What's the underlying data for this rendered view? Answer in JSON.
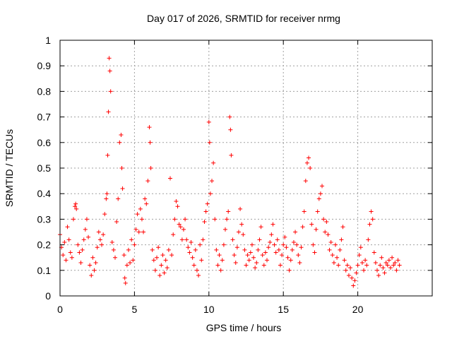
{
  "chart_data": {
    "type": "scatter",
    "title": "Day 017 of 2026, SRMTID for receiver nrmg",
    "xlabel": "GPS time / hours",
    "ylabel": "SRMTID / TECUs",
    "xlim": [
      0,
      25
    ],
    "ylim": [
      0,
      1
    ],
    "xticks": [
      0,
      5,
      10,
      15,
      20
    ],
    "xtick_labels": [
      "0",
      "5",
      "10",
      "15",
      "20"
    ],
    "yticks": [
      0,
      0.1,
      0.2,
      0.3,
      0.4,
      0.5,
      0.6,
      0.7,
      0.8,
      0.9,
      1
    ],
    "ytick_labels": [
      "0",
      "0.1",
      "0.2",
      "0.3",
      "0.4",
      "0.5",
      "0.6",
      "0.7",
      "0.8",
      "0.9",
      "1"
    ],
    "grid": true,
    "marker": "plus",
    "series": [
      {
        "name": "SRMTID",
        "color": "#ff0000",
        "points": [
          [
            0.0,
            0.24
          ],
          [
            0.1,
            0.19
          ],
          [
            0.2,
            0.16
          ],
          [
            0.3,
            0.21
          ],
          [
            0.4,
            0.14
          ],
          [
            0.5,
            0.27
          ],
          [
            0.6,
            0.22
          ],
          [
            0.7,
            0.17
          ],
          [
            0.8,
            0.15
          ],
          [
            0.9,
            0.3
          ],
          [
            1.0,
            0.35
          ],
          [
            1.05,
            0.36
          ],
          [
            1.1,
            0.34
          ],
          [
            1.2,
            0.2
          ],
          [
            1.3,
            0.17
          ],
          [
            1.4,
            0.13
          ],
          [
            1.5,
            0.18
          ],
          [
            1.6,
            0.22
          ],
          [
            1.7,
            0.26
          ],
          [
            1.8,
            0.3
          ],
          [
            1.9,
            0.23
          ],
          [
            2.0,
            0.12
          ],
          [
            2.1,
            0.08
          ],
          [
            2.2,
            0.15
          ],
          [
            2.3,
            0.1
          ],
          [
            2.4,
            0.13
          ],
          [
            2.5,
            0.19
          ],
          [
            2.6,
            0.25
          ],
          [
            2.7,
            0.22
          ],
          [
            2.8,
            0.2
          ],
          [
            2.9,
            0.24
          ],
          [
            3.0,
            0.32
          ],
          [
            3.1,
            0.38
          ],
          [
            3.15,
            0.4
          ],
          [
            3.2,
            0.55
          ],
          [
            3.25,
            0.72
          ],
          [
            3.3,
            0.93
          ],
          [
            3.35,
            0.88
          ],
          [
            3.4,
            0.8
          ],
          [
            3.5,
            0.21
          ],
          [
            3.6,
            0.18
          ],
          [
            3.7,
            0.15
          ],
          [
            3.8,
            0.29
          ],
          [
            3.9,
            0.38
          ],
          [
            4.0,
            0.6
          ],
          [
            4.1,
            0.63
          ],
          [
            4.15,
            0.5
          ],
          [
            4.2,
            0.42
          ],
          [
            4.3,
            0.16
          ],
          [
            4.35,
            0.07
          ],
          [
            4.4,
            0.05
          ],
          [
            4.5,
            0.12
          ],
          [
            4.6,
            0.18
          ],
          [
            4.7,
            0.13
          ],
          [
            4.8,
            0.22
          ],
          [
            4.9,
            0.14
          ],
          [
            5.0,
            0.2
          ],
          [
            5.1,
            0.26
          ],
          [
            5.2,
            0.32
          ],
          [
            5.3,
            0.25
          ],
          [
            5.4,
            0.34
          ],
          [
            5.5,
            0.3
          ],
          [
            5.6,
            0.25
          ],
          [
            5.7,
            0.38
          ],
          [
            5.8,
            0.36
          ],
          [
            5.9,
            0.45
          ],
          [
            6.0,
            0.66
          ],
          [
            6.05,
            0.6
          ],
          [
            6.1,
            0.5
          ],
          [
            6.2,
            0.18
          ],
          [
            6.3,
            0.14
          ],
          [
            6.4,
            0.1
          ],
          [
            6.5,
            0.15
          ],
          [
            6.6,
            0.19
          ],
          [
            6.7,
            0.08
          ],
          [
            6.8,
            0.12
          ],
          [
            6.9,
            0.16
          ],
          [
            7.0,
            0.09
          ],
          [
            7.1,
            0.14
          ],
          [
            7.2,
            0.11
          ],
          [
            7.3,
            0.18
          ],
          [
            7.4,
            0.46
          ],
          [
            7.5,
            0.16
          ],
          [
            7.6,
            0.24
          ],
          [
            7.7,
            0.3
          ],
          [
            7.8,
            0.37
          ],
          [
            7.9,
            0.35
          ],
          [
            8.0,
            0.28
          ],
          [
            8.1,
            0.27
          ],
          [
            8.2,
            0.22
          ],
          [
            8.3,
            0.26
          ],
          [
            8.4,
            0.3
          ],
          [
            8.5,
            0.22
          ],
          [
            8.6,
            0.19
          ],
          [
            8.7,
            0.17
          ],
          [
            8.8,
            0.21
          ],
          [
            8.9,
            0.15
          ],
          [
            9.0,
            0.12
          ],
          [
            9.1,
            0.18
          ],
          [
            9.2,
            0.1
          ],
          [
            9.3,
            0.08
          ],
          [
            9.4,
            0.2
          ],
          [
            9.5,
            0.14
          ],
          [
            9.6,
            0.22
          ],
          [
            9.7,
            0.29
          ],
          [
            9.8,
            0.33
          ],
          [
            9.9,
            0.36
          ],
          [
            10.0,
            0.68
          ],
          [
            10.05,
            0.6
          ],
          [
            10.1,
            0.4
          ],
          [
            10.2,
            0.45
          ],
          [
            10.3,
            0.52
          ],
          [
            10.4,
            0.3
          ],
          [
            10.5,
            0.18
          ],
          [
            10.6,
            0.12
          ],
          [
            10.7,
            0.16
          ],
          [
            10.8,
            0.1
          ],
          [
            10.9,
            0.14
          ],
          [
            11.0,
            0.2
          ],
          [
            11.1,
            0.26
          ],
          [
            11.2,
            0.3
          ],
          [
            11.3,
            0.33
          ],
          [
            11.4,
            0.7
          ],
          [
            11.45,
            0.65
          ],
          [
            11.5,
            0.55
          ],
          [
            11.6,
            0.22
          ],
          [
            11.7,
            0.16
          ],
          [
            11.8,
            0.13
          ],
          [
            11.9,
            0.19
          ],
          [
            12.0,
            0.25
          ],
          [
            12.1,
            0.34
          ],
          [
            12.2,
            0.28
          ],
          [
            12.3,
            0.24
          ],
          [
            12.4,
            0.18
          ],
          [
            12.5,
            0.12
          ],
          [
            12.6,
            0.16
          ],
          [
            12.7,
            0.14
          ],
          [
            12.8,
            0.17
          ],
          [
            12.9,
            0.2
          ],
          [
            13.0,
            0.15
          ],
          [
            13.1,
            0.11
          ],
          [
            13.2,
            0.13
          ],
          [
            13.3,
            0.18
          ],
          [
            13.4,
            0.22
          ],
          [
            13.5,
            0.27
          ],
          [
            13.6,
            0.16
          ],
          [
            13.7,
            0.12
          ],
          [
            13.8,
            0.17
          ],
          [
            13.9,
            0.14
          ],
          [
            14.0,
            0.19
          ],
          [
            14.1,
            0.21
          ],
          [
            14.2,
            0.24
          ],
          [
            14.3,
            0.28
          ],
          [
            14.4,
            0.2
          ],
          [
            14.5,
            0.17
          ],
          [
            14.6,
            0.22
          ],
          [
            14.7,
            0.18
          ],
          [
            14.8,
            0.12
          ],
          [
            14.9,
            0.16
          ],
          [
            15.0,
            0.2
          ],
          [
            15.1,
            0.23
          ],
          [
            15.2,
            0.19
          ],
          [
            15.3,
            0.15
          ],
          [
            15.4,
            0.1
          ],
          [
            15.5,
            0.14
          ],
          [
            15.6,
            0.18
          ],
          [
            15.7,
            0.21
          ],
          [
            15.8,
            0.25
          ],
          [
            15.9,
            0.2
          ],
          [
            16.0,
            0.16
          ],
          [
            16.1,
            0.13
          ],
          [
            16.2,
            0.19
          ],
          [
            16.3,
            0.27
          ],
          [
            16.4,
            0.33
          ],
          [
            16.5,
            0.45
          ],
          [
            16.6,
            0.52
          ],
          [
            16.7,
            0.54
          ],
          [
            16.8,
            0.5
          ],
          [
            16.9,
            0.28
          ],
          [
            17.0,
            0.2
          ],
          [
            17.1,
            0.17
          ],
          [
            17.2,
            0.26
          ],
          [
            17.3,
            0.33
          ],
          [
            17.4,
            0.38
          ],
          [
            17.5,
            0.4
          ],
          [
            17.6,
            0.43
          ],
          [
            17.7,
            0.3
          ],
          [
            17.8,
            0.25
          ],
          [
            17.9,
            0.29
          ],
          [
            18.0,
            0.24
          ],
          [
            18.1,
            0.18
          ],
          [
            18.2,
            0.21
          ],
          [
            18.3,
            0.16
          ],
          [
            18.4,
            0.13
          ],
          [
            18.5,
            0.2
          ],
          [
            18.6,
            0.15
          ],
          [
            18.7,
            0.12
          ],
          [
            18.8,
            0.18
          ],
          [
            18.9,
            0.22
          ],
          [
            19.0,
            0.27
          ],
          [
            19.1,
            0.14
          ],
          [
            19.2,
            0.1
          ],
          [
            19.3,
            0.12
          ],
          [
            19.4,
            0.08
          ],
          [
            19.5,
            0.11
          ],
          [
            19.6,
            0.07
          ],
          [
            19.7,
            0.04
          ],
          [
            19.8,
            0.06
          ],
          [
            19.9,
            0.09
          ],
          [
            20.0,
            0.12
          ],
          [
            20.1,
            0.16
          ],
          [
            20.2,
            0.19
          ],
          [
            20.3,
            0.13
          ],
          [
            20.4,
            0.1
          ],
          [
            20.5,
            0.14
          ],
          [
            20.6,
            0.12
          ],
          [
            20.7,
            0.22
          ],
          [
            20.8,
            0.28
          ],
          [
            20.9,
            0.33
          ],
          [
            21.0,
            0.3
          ],
          [
            21.1,
            0.17
          ],
          [
            21.2,
            0.13
          ],
          [
            21.3,
            0.1
          ],
          [
            21.4,
            0.08
          ],
          [
            21.5,
            0.12
          ],
          [
            21.6,
            0.15
          ],
          [
            21.7,
            0.11
          ],
          [
            21.8,
            0.09
          ],
          [
            21.9,
            0.13
          ],
          [
            22.0,
            0.12
          ],
          [
            22.1,
            0.14
          ],
          [
            22.2,
            0.11
          ],
          [
            22.3,
            0.15
          ],
          [
            22.4,
            0.12
          ],
          [
            22.5,
            0.13
          ],
          [
            22.6,
            0.1
          ],
          [
            22.7,
            0.14
          ],
          [
            22.8,
            0.12
          ]
        ]
      }
    ]
  }
}
